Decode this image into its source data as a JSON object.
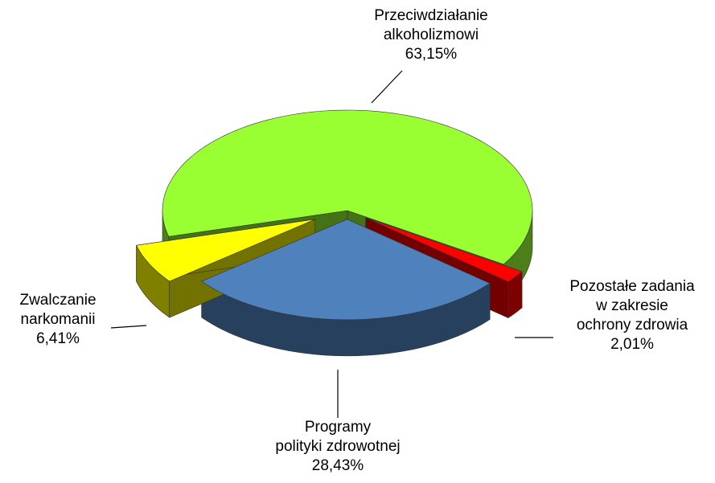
{
  "chart_data": {
    "type": "pie3d",
    "categories": [
      "Przeciwdziałanie alkoholizmowi",
      "Pozostałe zadania w zakresie ochrony zdrowia",
      "Programy polityki zdrowotnej",
      "Zwalczanie narkomanii"
    ],
    "values": [
      63.15,
      2.01,
      28.43,
      6.41
    ],
    "value_labels": [
      "63,15%",
      "2,01%",
      "28,43%",
      "6,41%"
    ],
    "colors": [
      "#99ff33",
      "#ff0000",
      "#4f81bd",
      "#ffff00"
    ]
  }
}
